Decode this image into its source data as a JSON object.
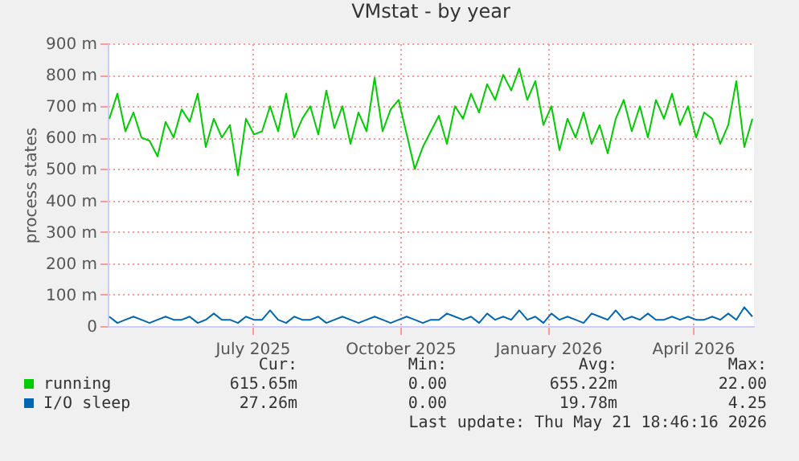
{
  "chart_data": {
    "type": "line",
    "title": "VMstat - by year",
    "ylabel": "process states",
    "x": [
      "2025-04-18",
      "2025-04-23",
      "2025-04-28",
      "2025-05-03",
      "2025-05-08",
      "2025-05-13",
      "2025-05-18",
      "2025-05-23",
      "2025-05-28",
      "2025-06-02",
      "2025-06-07",
      "2025-06-12",
      "2025-06-17",
      "2025-06-22",
      "2025-06-27",
      "2025-07-02",
      "2025-07-07",
      "2025-07-12",
      "2025-07-17",
      "2025-07-22",
      "2025-07-27",
      "2025-08-01",
      "2025-08-06",
      "2025-08-11",
      "2025-08-16",
      "2025-08-21",
      "2025-08-26",
      "2025-08-31",
      "2025-09-05",
      "2025-09-10",
      "2025-09-15",
      "2025-09-20",
      "2025-09-25",
      "2025-09-30",
      "2025-10-05",
      "2025-10-10",
      "2025-10-15",
      "2025-10-20",
      "2025-10-25",
      "2025-10-30",
      "2025-11-04",
      "2025-11-09",
      "2025-11-14",
      "2025-11-19",
      "2025-11-24",
      "2025-11-29",
      "2025-12-04",
      "2025-12-09",
      "2025-12-14",
      "2025-12-19",
      "2025-12-24",
      "2025-12-29",
      "2026-01-03",
      "2026-01-08",
      "2026-01-13",
      "2026-01-18",
      "2026-01-23",
      "2026-01-28",
      "2026-02-02",
      "2026-02-07",
      "2026-02-12",
      "2026-02-17",
      "2026-02-22",
      "2026-02-27",
      "2026-03-04",
      "2026-03-09",
      "2026-03-14",
      "2026-03-19",
      "2026-03-24",
      "2026-03-29",
      "2026-04-03",
      "2026-04-08",
      "2026-04-13",
      "2026-04-18",
      "2026-04-23",
      "2026-04-28",
      "2026-05-03",
      "2026-05-08",
      "2026-05-13",
      "2026-05-18",
      "2026-05-23"
    ],
    "series": [
      {
        "name": "running",
        "color": "#00cc00",
        "values": [
          660,
          740,
          620,
          680,
          600,
          590,
          540,
          650,
          600,
          690,
          650,
          740,
          570,
          660,
          600,
          640,
          480,
          660,
          610,
          620,
          700,
          620,
          740,
          600,
          660,
          700,
          610,
          750,
          630,
          700,
          580,
          680,
          620,
          790,
          620,
          690,
          720,
          610,
          500,
          570,
          620,
          670,
          580,
          700,
          660,
          740,
          680,
          770,
          720,
          800,
          750,
          820,
          720,
          780,
          640,
          700,
          560,
          660,
          600,
          680,
          580,
          640,
          550,
          660,
          720,
          620,
          700,
          600,
          720,
          660,
          740,
          640,
          700,
          600,
          680,
          660,
          580,
          640,
          780,
          570,
          660
        ]
      },
      {
        "name": "I/O sleep",
        "color": "#0066b3",
        "values": [
          30,
          10,
          20,
          30,
          20,
          10,
          20,
          30,
          20,
          20,
          30,
          10,
          20,
          40,
          20,
          20,
          10,
          30,
          20,
          20,
          50,
          20,
          10,
          30,
          20,
          20,
          30,
          10,
          20,
          30,
          20,
          10,
          20,
          30,
          20,
          10,
          20,
          30,
          20,
          10,
          20,
          20,
          40,
          30,
          20,
          30,
          10,
          40,
          20,
          30,
          20,
          50,
          20,
          30,
          10,
          40,
          20,
          30,
          20,
          10,
          40,
          30,
          20,
          50,
          20,
          30,
          20,
          40,
          20,
          20,
          30,
          20,
          30,
          20,
          20,
          30,
          20,
          40,
          20,
          60,
          30
        ]
      }
    ],
    "xlim": [
      "2025-04-17",
      "2026-05-24"
    ],
    "xticks": [
      {
        "value": "2025-07-16",
        "label": "July 2025"
      },
      {
        "value": "2025-10-16",
        "label": "October 2025"
      },
      {
        "value": "2026-01-16",
        "label": "January 2026"
      },
      {
        "value": "2026-04-16",
        "label": "April 2026"
      }
    ],
    "ylim": [
      0,
      900
    ],
    "yticks": [
      0,
      {
        "value": 100,
        "label": "100 m"
      },
      {
        "value": 200,
        "label": "200 m"
      },
      {
        "value": 300,
        "label": "300 m"
      },
      {
        "value": 400,
        "label": "400 m"
      },
      {
        "value": 500,
        "label": "500 m"
      },
      {
        "value": 600,
        "label": "600 m"
      },
      {
        "value": 700,
        "label": "700 m"
      },
      {
        "value": 800,
        "label": "800 m"
      },
      {
        "value": 900,
        "label": "900 m"
      }
    ],
    "grid": true,
    "legend": "bottom",
    "marker": "none",
    "line_style": "solid",
    "annotations": [
      "Cur:",
      "Min:",
      "Avg:",
      "Max:",
      "615.65m",
      "0.00",
      "655.22m",
      "22.00",
      "27.26m",
      "0.00",
      "19.78m",
      "4.25",
      "Last update: Thu May 21 18:46:16 2026"
    ]
  }
}
